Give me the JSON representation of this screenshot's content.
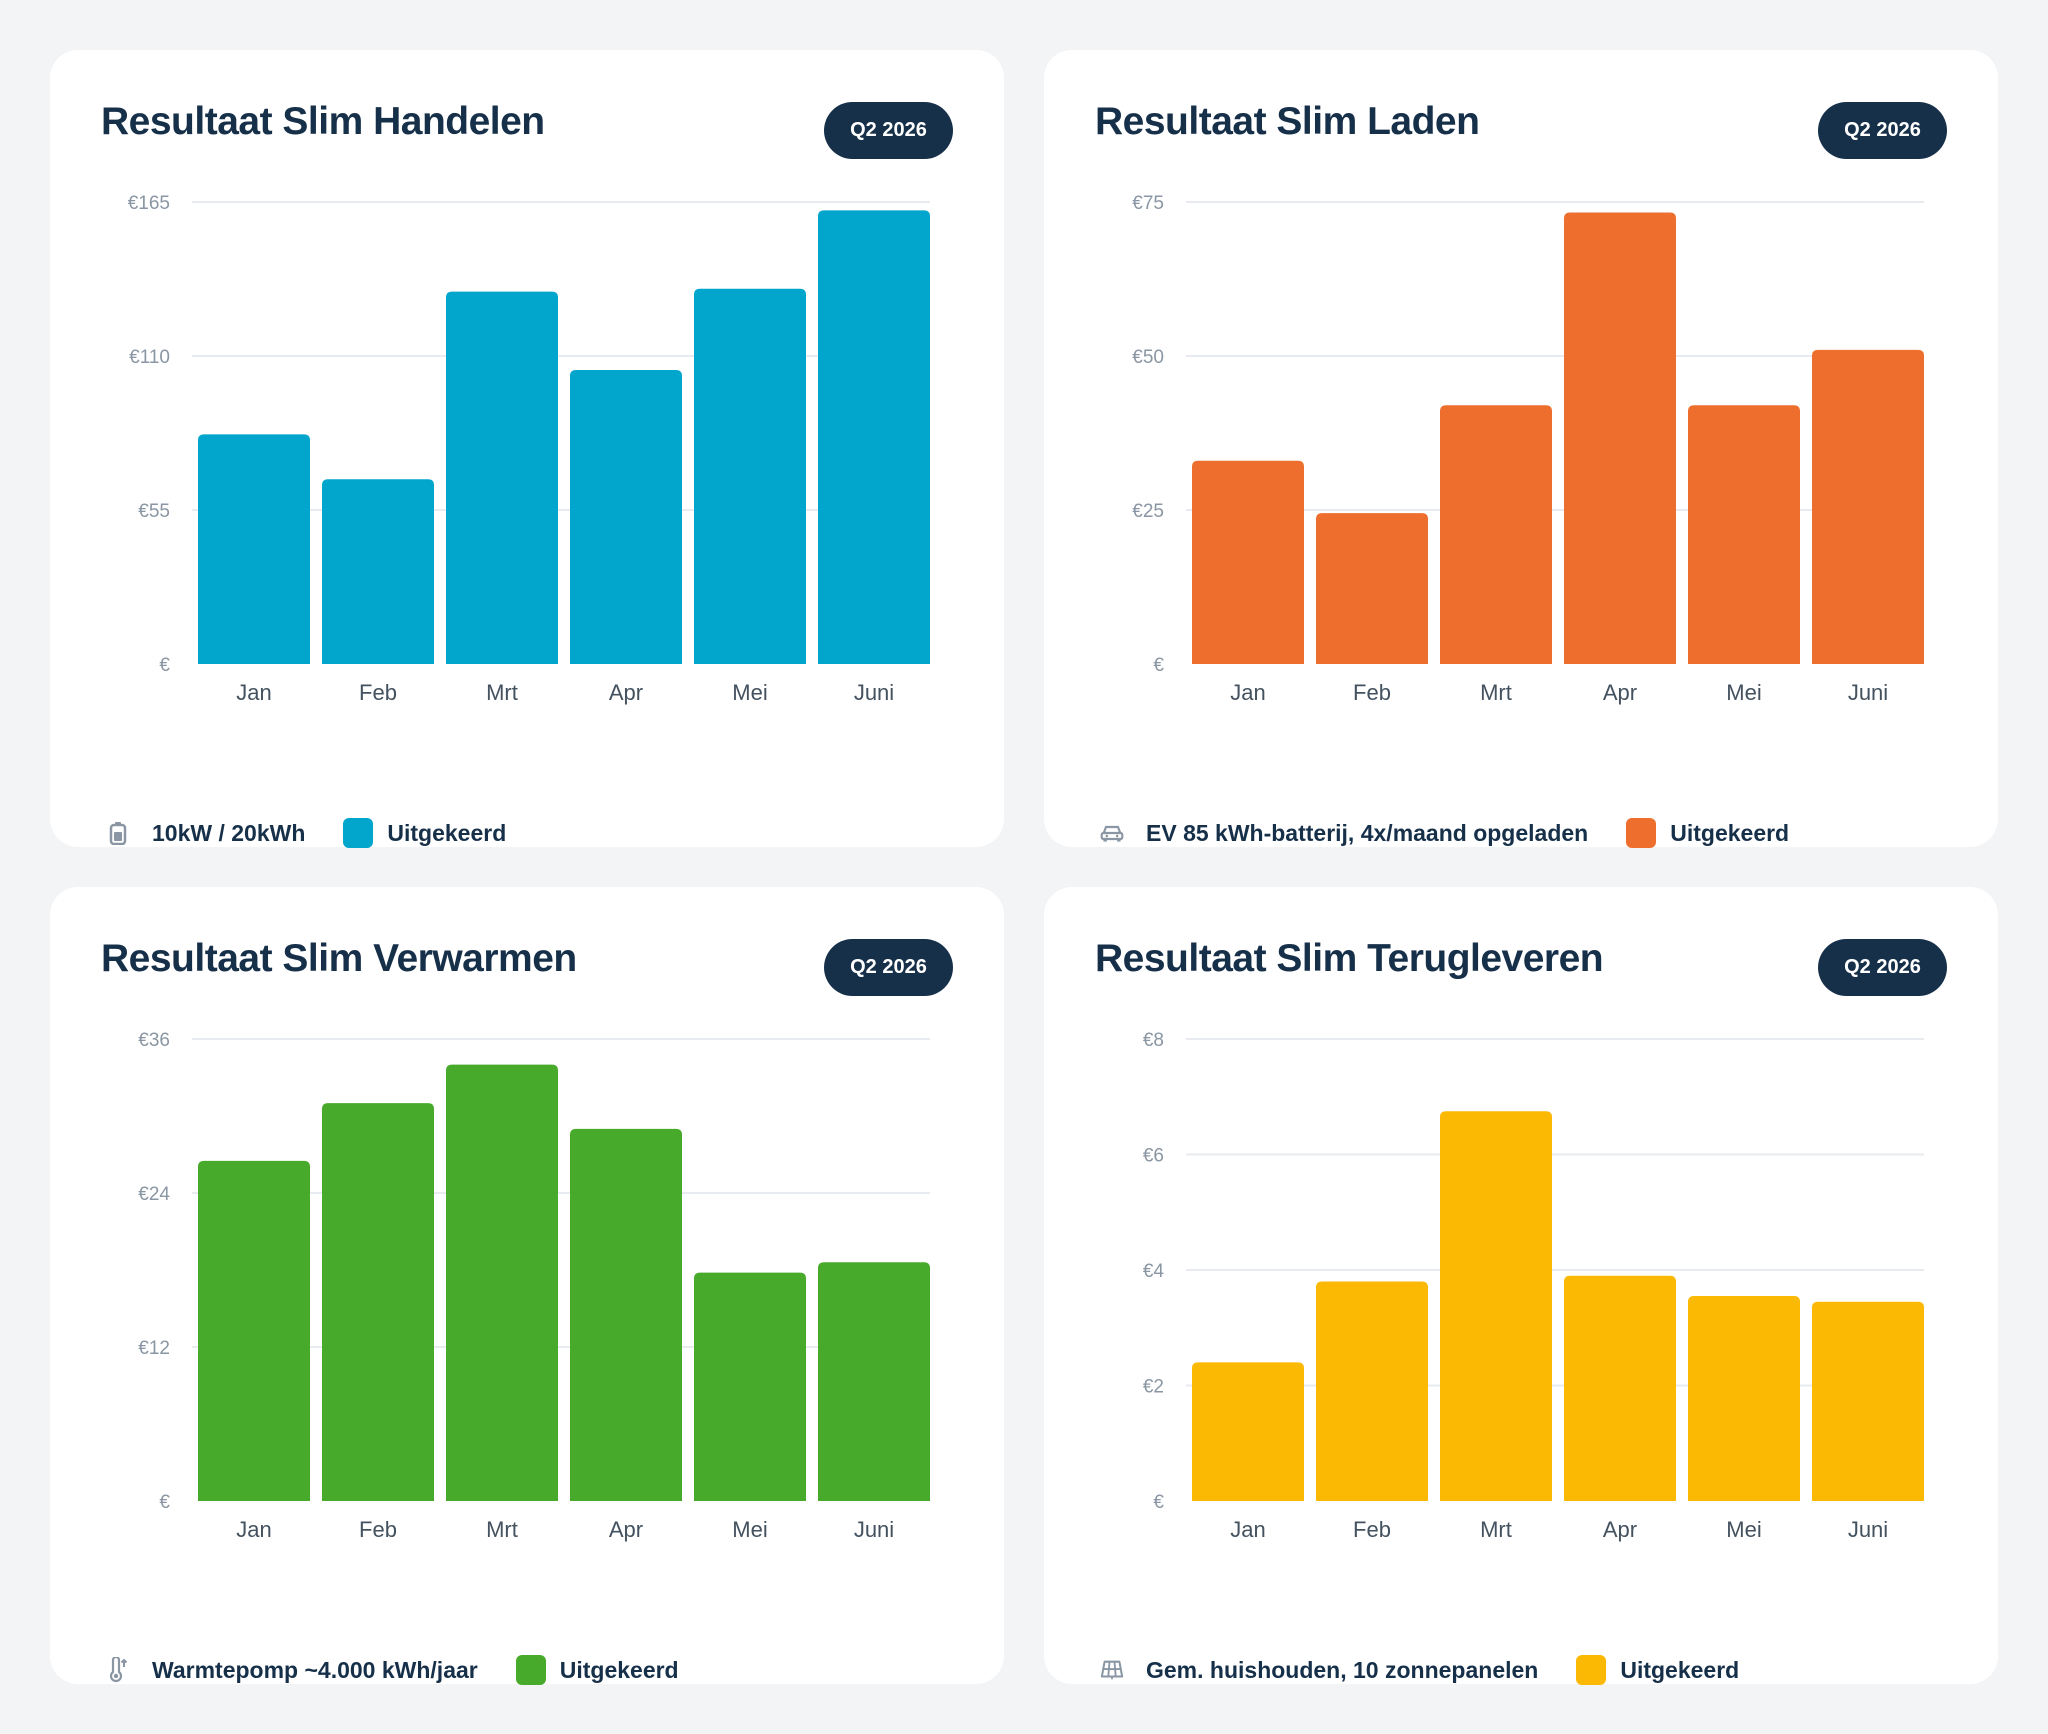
{
  "cards": [
    {
      "title": "Resultaat Slim Handelen",
      "badge": "Q2 2026",
      "note": "10kW / 20kWh",
      "icon": "battery-icon",
      "legend_label": "Uitgekeerd",
      "color": "#02a5cb"
    },
    {
      "title": "Resultaat Slim Laden",
      "badge": "Q2 2026",
      "note": "EV 85 kWh-batterij, 4x/maand opgeladen",
      "icon": "car-icon",
      "legend_label": "Uitgekeerd",
      "color": "#ee6f2d"
    },
    {
      "title": "Resultaat Slim Verwarmen",
      "badge": "Q2 2026",
      "note": "Warmtepomp ~4.000 kWh/jaar",
      "icon": "thermometer-icon",
      "legend_label": "Uitgekeerd",
      "color": "#48aa2b"
    },
    {
      "title": "Resultaat Slim Terugleveren",
      "badge": "Q2 2026",
      "note": "Gem. huishouden, 10 zonnepanelen",
      "icon": "solar-panel-icon",
      "legend_label": "Uitgekeerd",
      "color": "#fbb903"
    }
  ],
  "chart_data": [
    {
      "type": "bar",
      "title": "Resultaat Slim Handelen",
      "categories": [
        "Jan",
        "Feb",
        "Mrt",
        "Apr",
        "Mei",
        "Juni"
      ],
      "series": [
        {
          "name": "Uitgekeerd",
          "values": [
            82,
            66,
            133,
            105,
            134,
            162
          ]
        }
      ],
      "ylim": [
        0,
        165
      ],
      "yticks": [
        0,
        55,
        110,
        165
      ],
      "ytick_labels": [
        "€",
        "€55",
        "€110",
        "€165"
      ],
      "grid": true
    },
    {
      "type": "bar",
      "title": "Resultaat Slim Laden",
      "categories": [
        "Jan",
        "Feb",
        "Mrt",
        "Apr",
        "Mei",
        "Juni"
      ],
      "series": [
        {
          "name": "Uitgekeerd",
          "values": [
            33,
            24.5,
            42,
            73.3,
            42,
            51
          ]
        }
      ],
      "ylim": [
        0,
        75
      ],
      "yticks": [
        0,
        25,
        50,
        75
      ],
      "ytick_labels": [
        "€",
        "€25",
        "€50",
        "€75"
      ],
      "grid": true
    },
    {
      "type": "bar",
      "title": "Resultaat Slim Verwarmen",
      "categories": [
        "Jan",
        "Feb",
        "Mrt",
        "Apr",
        "Mei",
        "Juni"
      ],
      "series": [
        {
          "name": "Uitgekeerd",
          "values": [
            26.5,
            31,
            34,
            29,
            17.8,
            18.6
          ]
        }
      ],
      "ylim": [
        0,
        36
      ],
      "yticks": [
        0,
        12,
        24,
        36
      ],
      "ytick_labels": [
        "€",
        "€12",
        "€24",
        "€36"
      ],
      "grid": true
    },
    {
      "type": "bar",
      "title": "Resultaat Slim Terugleveren",
      "categories": [
        "Jan",
        "Feb",
        "Mrt",
        "Apr",
        "Mei",
        "Juni"
      ],
      "series": [
        {
          "name": "Uitgekeerd",
          "values": [
            2.4,
            3.8,
            6.75,
            3.9,
            3.55,
            3.45
          ]
        }
      ],
      "ylim": [
        0,
        8
      ],
      "yticks": [
        0,
        2,
        4,
        6,
        8
      ],
      "ytick_labels": [
        "€",
        "€2",
        "€4",
        "€6",
        "€8"
      ],
      "grid": true
    }
  ]
}
